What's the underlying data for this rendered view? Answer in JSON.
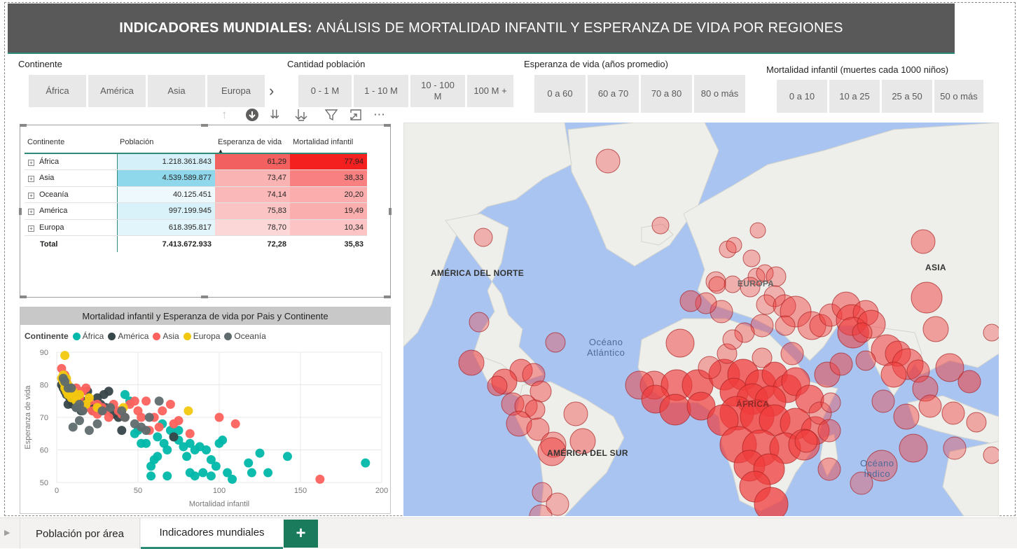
{
  "header": {
    "title_bold": "INDICADORES MUNDIALES:",
    "title_rest": "ANÁLISIS DE MORTALIDAD INFANTIL Y ESPERANZA DE VIDA POR REGIONES"
  },
  "slicers": {
    "continente": {
      "title": "Continente",
      "options": [
        "África",
        "América",
        "Asia",
        "Europa"
      ],
      "next_icon": "chevron-right-icon"
    },
    "poblacion": {
      "title": "Cantidad población",
      "options": [
        "0 - 1 M",
        "1 - 10 M",
        "10 - 100 M",
        "100 M +"
      ]
    },
    "esperanza": {
      "title": "Esperanza de vida (años promedio)",
      "options": [
        "0 a 60",
        "60 a 70",
        "70 a 80",
        "80 o más"
      ]
    },
    "mortalidad": {
      "title": "Mortalidad infantil (muertes cada 1000 niños)",
      "options": [
        "0 a 10",
        "10 a 25",
        "25 a 50",
        "50 o más"
      ]
    }
  },
  "toolbar_icons": [
    "drill-up-icon",
    "drill-down-icon",
    "expand-all-icon",
    "expand-hierarchy-icon",
    "filter-icon",
    "focus-mode-icon",
    "more-options-icon"
  ],
  "table": {
    "columns": [
      "Continente",
      "Población",
      "Esperanza de vida",
      "Mortalidad infantil"
    ],
    "sorted_column": "Esperanza de vida",
    "rows": [
      {
        "continente": "África",
        "poblacion": "1.218.361.843",
        "esperanza": "61,29",
        "mortalidad": "77,94"
      },
      {
        "continente": "Asia",
        "poblacion": "4.539.589.877",
        "esperanza": "73,47",
        "mortalidad": "38,33"
      },
      {
        "continente": "Oceanía",
        "poblacion": "40.125.451",
        "esperanza": "74,14",
        "mortalidad": "20,20"
      },
      {
        "continente": "América",
        "poblacion": "997.199.945",
        "esperanza": "75,83",
        "mortalidad": "19,49"
      },
      {
        "continente": "Europa",
        "poblacion": "618.395.817",
        "esperanza": "78,70",
        "mortalidad": "10,34"
      }
    ],
    "total": {
      "label": "Total",
      "poblacion": "7.413.672.933",
      "esperanza": "72,28",
      "mortalidad": "35,83"
    },
    "colors": {
      "poblacion": "#8fd8ec",
      "esperanza": "#f36060",
      "mortalidad": "#f41f1f",
      "base": "#ffffff"
    }
  },
  "scatter": {
    "title": "Mortalidad infantil y Esperanza de vida por Pais y Continente",
    "legend_title": "Continente",
    "chart_data": {
      "type": "scatter",
      "xlabel": "Mortalidad infantil",
      "ylabel": "Esperanza de vida",
      "xlim": [
        0,
        200
      ],
      "ylim": [
        50,
        90
      ],
      "xticks": [
        0,
        50,
        100,
        150,
        200
      ],
      "yticks": [
        50,
        60,
        70,
        80,
        90
      ],
      "grid": true,
      "legend_position": "top-left",
      "series": [
        {
          "name": "África",
          "color": "#01b8aa",
          "points": [
            [
              42,
              77
            ],
            [
              45,
              75
            ],
            [
              50,
              66
            ],
            [
              55,
              62
            ],
            [
              58,
              55
            ],
            [
              60,
              57
            ],
            [
              62,
              64
            ],
            [
              66,
              62
            ],
            [
              68,
              60
            ],
            [
              70,
              66
            ],
            [
              72,
              64
            ],
            [
              75,
              63
            ],
            [
              78,
              61
            ],
            [
              80,
              58
            ],
            [
              82,
              62
            ],
            [
              85,
              60
            ],
            [
              88,
              61
            ],
            [
              90,
              53
            ],
            [
              92,
              60
            ],
            [
              95,
              57
            ],
            [
              98,
              55
            ],
            [
              100,
              62
            ],
            [
              102,
              63
            ],
            [
              105,
              53
            ],
            [
              58,
              52
            ],
            [
              68,
              52
            ],
            [
              82,
              53
            ],
            [
              85,
              52
            ],
            [
              95,
              52
            ],
            [
              118,
              56
            ],
            [
              120,
              53
            ],
            [
              125,
              59
            ],
            [
              130,
              53
            ],
            [
              142,
              58
            ],
            [
              108,
              51
            ],
            [
              190,
              56
            ],
            [
              48,
              65
            ],
            [
              52,
              62
            ],
            [
              65,
              68
            ],
            [
              62,
              58
            ],
            [
              75,
              66
            ]
          ]
        },
        {
          "name": "América",
          "color": "#374649",
          "points": [
            [
              3,
              80
            ],
            [
              4,
              79
            ],
            [
              5,
              78
            ],
            [
              6,
              77
            ],
            [
              8,
              76
            ],
            [
              9,
              75
            ],
            [
              10,
              74
            ],
            [
              11,
              77
            ],
            [
              12,
              73
            ],
            [
              13,
              74
            ],
            [
              14,
              76
            ],
            [
              15,
              72
            ],
            [
              16,
              73
            ],
            [
              18,
              75
            ],
            [
              19,
              78
            ],
            [
              20,
              74
            ],
            [
              22,
              72
            ],
            [
              24,
              73
            ],
            [
              25,
              76
            ],
            [
              27,
              74
            ],
            [
              30,
              73
            ],
            [
              32,
              78
            ],
            [
              35,
              71
            ],
            [
              38,
              70
            ],
            [
              40,
              66
            ],
            [
              72,
              64
            ],
            [
              7,
              74
            ],
            [
              29,
              77
            ]
          ]
        },
        {
          "name": "Asia",
          "color": "#fd625e",
          "points": [
            [
              3,
              85
            ],
            [
              5,
              83
            ],
            [
              6,
              81
            ],
            [
              8,
              78
            ],
            [
              10,
              77
            ],
            [
              12,
              79
            ],
            [
              14,
              76
            ],
            [
              16,
              78
            ],
            [
              18,
              73
            ],
            [
              20,
              75
            ],
            [
              22,
              72
            ],
            [
              25,
              74
            ],
            [
              28,
              73
            ],
            [
              30,
              72
            ],
            [
              32,
              70
            ],
            [
              35,
              74
            ],
            [
              38,
              72
            ],
            [
              40,
              71
            ],
            [
              42,
              70
            ],
            [
              45,
              74
            ],
            [
              48,
              75
            ],
            [
              50,
              72
            ],
            [
              52,
              70
            ],
            [
              55,
              75
            ],
            [
              57,
              66
            ],
            [
              60,
              70
            ],
            [
              63,
              67
            ],
            [
              65,
              72
            ],
            [
              70,
              74
            ],
            [
              72,
              68
            ],
            [
              75,
              69
            ],
            [
              82,
              65
            ],
            [
              100,
              70
            ],
            [
              110,
              68
            ],
            [
              162,
              51
            ],
            [
              25,
              71
            ],
            [
              18,
              79
            ]
          ]
        },
        {
          "name": "Europa",
          "color": "#f2c80f",
          "points": [
            [
              3,
              82
            ],
            [
              4,
              81
            ],
            [
              4,
              83
            ],
            [
              5,
              80
            ],
            [
              5,
              79
            ],
            [
              6,
              82
            ],
            [
              6,
              78
            ],
            [
              7,
              80
            ],
            [
              7,
              77
            ],
            [
              8,
              79
            ],
            [
              9,
              76
            ],
            [
              10,
              78
            ],
            [
              12,
              75
            ],
            [
              14,
              77
            ],
            [
              18,
              74
            ],
            [
              20,
              76
            ],
            [
              25,
              73
            ],
            [
              5,
              89
            ],
            [
              41,
              73
            ],
            [
              81,
              72
            ]
          ]
        },
        {
          "name": "Oceanía",
          "color": "#5f6b6d",
          "points": [
            [
              4,
              82
            ],
            [
              5,
              81
            ],
            [
              7,
              79
            ],
            [
              9,
              79
            ],
            [
              12,
              73
            ],
            [
              14,
              69
            ],
            [
              16,
              72
            ],
            [
              20,
              66
            ],
            [
              25,
              68
            ],
            [
              28,
              72
            ],
            [
              33,
              73
            ],
            [
              40,
              72
            ],
            [
              42,
              70
            ],
            [
              48,
              68
            ],
            [
              52,
              67
            ],
            [
              55,
              66
            ],
            [
              57,
              70
            ],
            [
              63,
              75
            ],
            [
              10,
              67
            ],
            [
              14,
              74
            ]
          ]
        }
      ]
    }
  },
  "map": {
    "labels": [
      "AMÉRICA DEL NORTE",
      "EUROPA",
      "ASIA",
      "ÁFRICA",
      "AMÉRICA DEL SUR"
    ],
    "oceans": [
      [
        "Océano",
        "Atlántico"
      ],
      [
        "Océano",
        "Índico"
      ]
    ],
    "land_color": "#eeeeea",
    "ocean_color": "#a9c4f0",
    "bubble_fill": "#f03c3c",
    "bubble_stroke": "#a82424"
  },
  "tabs": {
    "items": [
      "Población por área",
      "Indicadores mundiales"
    ],
    "active": "Indicadores mundiales",
    "add_label": "+"
  }
}
